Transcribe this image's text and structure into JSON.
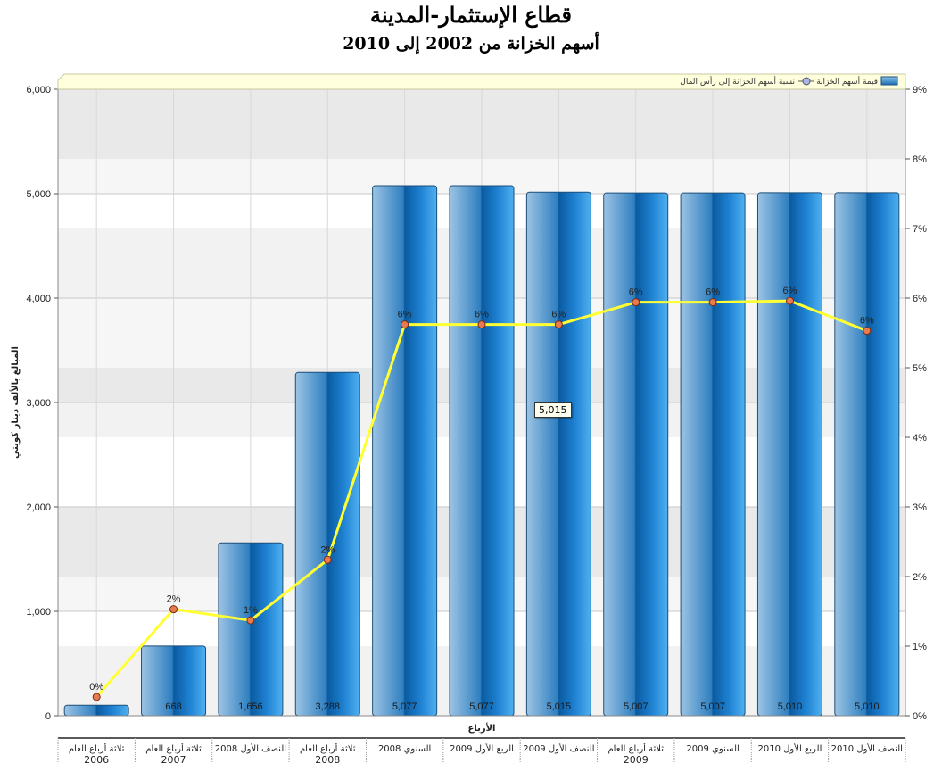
{
  "title": "قطاع الإستثمار-المدينة",
  "subtitle": "أسهم الخزانة من 2002 إلى 2010",
  "tooltip": "5,015",
  "colors": {
    "bar_light": "#bcd8ee",
    "bar_mid": "#3d8fcf",
    "bar_dark": "#0a5ea8",
    "line": "#ffff33",
    "marker": "#e87a50",
    "legend_bg": "#ffffdd"
  },
  "chart_data": {
    "type": "bar",
    "xlabel": "الأرباع",
    "ylabel": "المبالغ بالألف دينار كويتي",
    "ylim": [
      0,
      6000
    ],
    "y_ticks": [
      "0",
      "1,000",
      "2,000",
      "3,000",
      "4,000",
      "5,000",
      "6,000"
    ],
    "y2lim": [
      0,
      9
    ],
    "y2_ticks": [
      "0%",
      "1%",
      "2%",
      "3%",
      "4%",
      "5%",
      "6%",
      "7%",
      "8%",
      "9%"
    ],
    "categories": [
      [
        "ثلاثة أرباع العام",
        "2006"
      ],
      [
        "ثلاثة أرباع العام",
        "2007"
      ],
      [
        "النصف الأول 2008"
      ],
      [
        "ثلاثة أرباع العام",
        "2008"
      ],
      [
        "السنوي 2008"
      ],
      [
        "الربع الأول 2009"
      ],
      [
        "النصف الأول 2009"
      ],
      [
        "ثلاثة أرباع العام",
        "2009"
      ],
      [
        "السنوي 2009"
      ],
      [
        "الربع الأول 2010"
      ],
      [
        "النصف الأول 2010"
      ]
    ],
    "series": [
      {
        "name": "قيمة أسهم الخزانة",
        "type": "bar",
        "values": [
          100,
          668,
          1656,
          3288,
          5077,
          5077,
          5015,
          5007,
          5007,
          5010,
          5010
        ],
        "labels": [
          "",
          "668",
          "1,656",
          "3,288",
          "5,077",
          "5,077",
          "5,015",
          "5,007",
          "5,007",
          "5,010",
          "5,010"
        ]
      },
      {
        "name": "نسبة أسهم الخزانة إلى رأس المال",
        "type": "line",
        "axis": "right",
        "values": [
          0.27,
          1.53,
          1.37,
          2.24,
          5.62,
          5.62,
          5.62,
          5.94,
          5.94,
          5.96,
          5.53
        ],
        "labels": [
          "0%",
          "2%",
          "1%",
          "2%",
          "6%",
          "6%",
          "6%",
          "6%",
          "6%",
          "6%",
          "6%"
        ]
      }
    ],
    "grid": true,
    "legend": "top"
  }
}
